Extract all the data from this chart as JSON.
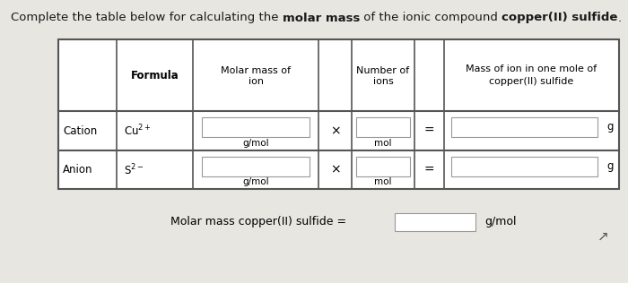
{
  "bg_color": "#e8e6e0",
  "table_bg": "#ffffff",
  "title_parts": [
    {
      "text": "Complete the table below for calculating the ",
      "bold": false
    },
    {
      "text": "molar mass",
      "bold": true
    },
    {
      "text": " of the ionic compound ",
      "bold": false
    },
    {
      "text": "copper(II) sulfide",
      "bold": true
    },
    {
      "text": ".",
      "bold": false
    }
  ],
  "col_labels": [
    "",
    "Formula",
    "Molar mass of\nion",
    "",
    "Number of\nions",
    "",
    "Mass of ion in one mole of\ncopper(II) sulfide"
  ],
  "rows": [
    {
      "label": "Cation",
      "formula": "Cu$^{2+}$"
    },
    {
      "label": "Anion",
      "formula": "S$^{2-}$"
    }
  ],
  "unit_mol_mass": "g/mol",
  "unit_num": "mol",
  "unit_mass": "g",
  "footer": "Molar mass copper(II) sulfide =",
  "footer_unit": "g/mol"
}
